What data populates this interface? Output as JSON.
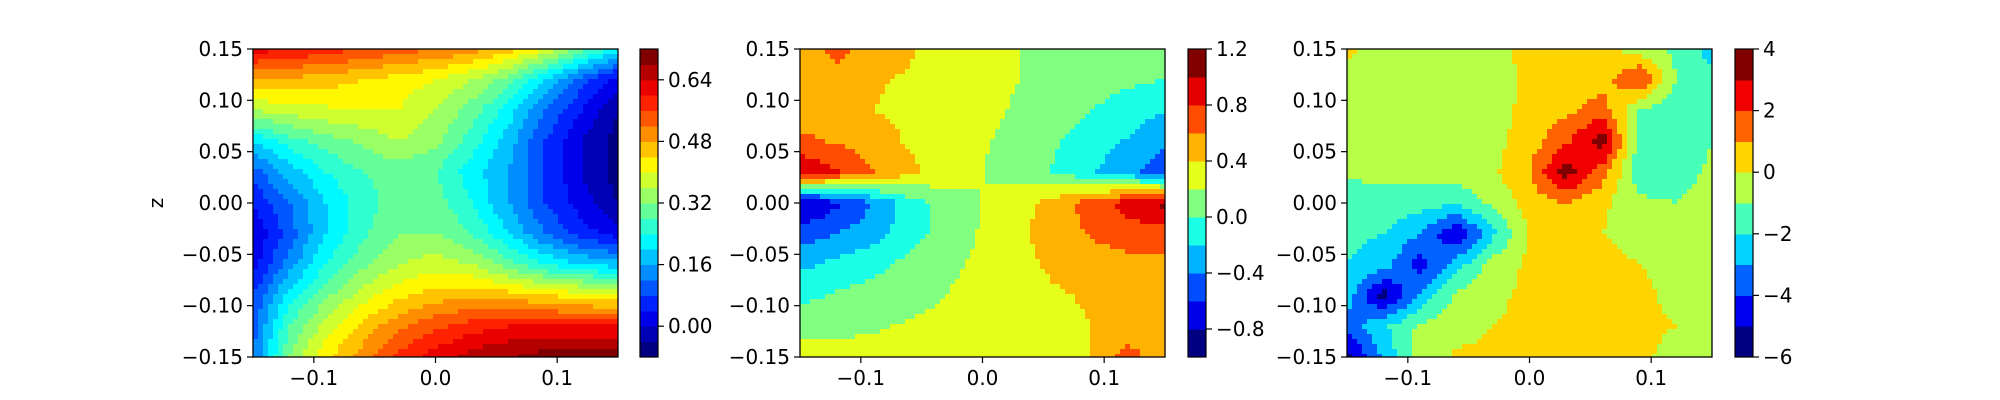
{
  "chart_data": [
    {
      "type": "heatmap",
      "subtype": "filled-contour",
      "colormap": "jet",
      "xlabel": "",
      "ylabel": "z",
      "xlim": [
        -0.15,
        0.15
      ],
      "ylim": [
        -0.15,
        0.15
      ],
      "xticks": [
        "−0.1",
        "0.0",
        "0.1"
      ],
      "yticks": [
        "0.15",
        "0.10",
        "0.05",
        "0.00",
        "−0.05",
        "−0.10",
        "−0.15"
      ],
      "colorbar": {
        "min": -0.08,
        "max": 0.72,
        "levels": [
          -0.08,
          -0.04,
          0.0,
          0.04,
          0.08,
          0.12,
          0.16,
          0.2,
          0.24,
          0.28,
          0.32,
          0.36,
          0.4,
          0.44,
          0.48,
          0.52,
          0.56,
          0.6,
          0.64,
          0.68,
          0.72
        ],
        "tick_values": [
          0.0,
          0.16,
          0.32,
          0.48,
          0.64
        ],
        "tick_labels": [
          "0.00",
          "0.16",
          "0.32",
          "0.48",
          "0.64"
        ]
      },
      "grid": {
        "x": [
          -0.15,
          -0.12,
          -0.09,
          -0.06,
          -0.03,
          0.0,
          0.03,
          0.06,
          0.09,
          0.12,
          0.15
        ],
        "z": [
          0.15,
          0.12,
          0.09,
          0.06,
          0.03,
          0.0,
          -0.03,
          -0.06,
          -0.09,
          -0.12,
          -0.15
        ],
        "values": [
          [
            0.62,
            0.6,
            0.58,
            0.56,
            0.54,
            0.52,
            0.5,
            0.46,
            0.4,
            0.3,
            0.22
          ],
          [
            0.48,
            0.47,
            0.46,
            0.44,
            0.42,
            0.4,
            0.36,
            0.3,
            0.2,
            0.1,
            0.02
          ],
          [
            0.36,
            0.38,
            0.39,
            0.4,
            0.4,
            0.36,
            0.3,
            0.22,
            0.12,
            0.04,
            -0.04
          ],
          [
            0.2,
            0.26,
            0.3,
            0.33,
            0.36,
            0.33,
            0.26,
            0.18,
            0.08,
            0.0,
            -0.06
          ],
          [
            0.1,
            0.18,
            0.24,
            0.28,
            0.3,
            0.28,
            0.22,
            0.16,
            0.08,
            0.0,
            -0.06
          ],
          [
            0.04,
            0.12,
            0.2,
            0.26,
            0.3,
            0.3,
            0.24,
            0.16,
            0.08,
            0.02,
            -0.04
          ],
          [
            0.0,
            0.1,
            0.2,
            0.27,
            0.32,
            0.32,
            0.28,
            0.2,
            0.12,
            0.06,
            0.02
          ],
          [
            0.02,
            0.14,
            0.24,
            0.31,
            0.36,
            0.38,
            0.36,
            0.3,
            0.24,
            0.2,
            0.18
          ],
          [
            0.08,
            0.22,
            0.31,
            0.38,
            0.43,
            0.46,
            0.47,
            0.46,
            0.44,
            0.42,
            0.4
          ],
          [
            0.1,
            0.28,
            0.38,
            0.45,
            0.51,
            0.55,
            0.58,
            0.6,
            0.6,
            0.6,
            0.6
          ],
          [
            0.12,
            0.32,
            0.43,
            0.5,
            0.57,
            0.62,
            0.66,
            0.68,
            0.7,
            0.7,
            0.7
          ]
        ]
      }
    },
    {
      "type": "heatmap",
      "subtype": "filled-contour",
      "colormap": "jet",
      "xlabel": "",
      "ylabel": "",
      "xlim": [
        -0.15,
        0.15
      ],
      "ylim": [
        -0.15,
        0.15
      ],
      "xticks": [
        "−0.1",
        "0.0",
        "0.1"
      ],
      "yticks": [
        "0.15",
        "0.10",
        "0.05",
        "0.00",
        "−0.05",
        "−0.10",
        "−0.15"
      ],
      "colorbar": {
        "min": -1.0,
        "max": 1.2,
        "levels": [
          -1.0,
          -0.8,
          -0.6,
          -0.4,
          -0.2,
          0.0,
          0.2,
          0.4,
          0.6,
          0.8,
          1.0,
          1.2
        ],
        "tick_values": [
          -0.8,
          -0.4,
          0.0,
          0.4,
          0.8,
          1.2
        ],
        "tick_labels": [
          "−0.8",
          "−0.4",
          "0.0",
          "0.4",
          "0.8",
          "1.2"
        ]
      },
      "grid": {
        "x": [
          -0.15,
          -0.12,
          -0.09,
          -0.06,
          -0.03,
          0.0,
          0.03,
          0.06,
          0.09,
          0.12,
          0.15
        ],
        "z": [
          0.15,
          0.12,
          0.09,
          0.06,
          0.03,
          0.0,
          -0.03,
          -0.06,
          -0.09,
          -0.12,
          -0.15
        ],
        "values": [
          [
            0.4,
            0.7,
            0.5,
            0.42,
            0.32,
            0.25,
            0.2,
            0.16,
            0.12,
            0.1,
            0.1
          ],
          [
            0.4,
            0.48,
            0.42,
            0.38,
            0.3,
            0.24,
            0.2,
            0.16,
            0.1,
            0.04,
            0.0
          ],
          [
            0.5,
            0.44,
            0.4,
            0.36,
            0.3,
            0.24,
            0.18,
            0.1,
            0.0,
            -0.1,
            -0.2
          ],
          [
            0.65,
            0.58,
            0.48,
            0.38,
            0.3,
            0.22,
            0.14,
            0.02,
            -0.1,
            -0.22,
            -0.35
          ],
          [
            1.0,
            0.82,
            0.62,
            0.44,
            0.3,
            0.2,
            0.1,
            -0.02,
            -0.18,
            -0.35,
            -0.55
          ],
          [
            -0.85,
            -0.65,
            -0.4,
            -0.1,
            0.1,
            0.2,
            0.32,
            0.5,
            0.7,
            0.9,
            1.05
          ],
          [
            -0.5,
            -0.4,
            -0.28,
            -0.1,
            0.1,
            0.22,
            0.36,
            0.5,
            0.62,
            0.7,
            0.72
          ],
          [
            -0.25,
            -0.15,
            -0.06,
            0.06,
            0.16,
            0.24,
            0.34,
            0.44,
            0.5,
            0.54,
            0.55
          ],
          [
            -0.05,
            0.02,
            0.08,
            0.14,
            0.2,
            0.26,
            0.32,
            0.38,
            0.42,
            0.45,
            0.46
          ],
          [
            0.1,
            0.14,
            0.18,
            0.22,
            0.25,
            0.28,
            0.32,
            0.36,
            0.4,
            0.44,
            0.46
          ],
          [
            0.4,
            0.3,
            0.26,
            0.26,
            0.26,
            0.28,
            0.32,
            0.36,
            0.4,
            0.7,
            0.45
          ]
        ]
      }
    },
    {
      "type": "heatmap",
      "subtype": "filled-contour",
      "colormap": "jet",
      "xlabel": "",
      "ylabel": "",
      "xlim": [
        -0.15,
        0.15
      ],
      "ylim": [
        -0.15,
        0.15
      ],
      "xticks": [
        "−0.1",
        "0.0",
        "0.1"
      ],
      "yticks": [
        "0.15",
        "0.10",
        "0.05",
        "0.00",
        "−0.05",
        "−0.10",
        "−0.15"
      ],
      "colorbar": {
        "min": -6,
        "max": 4,
        "levels": [
          -6,
          -5,
          -4,
          -3,
          -2,
          -1,
          0,
          1,
          2,
          3,
          4
        ],
        "tick_values": [
          -6,
          -4,
          -2,
          0,
          2,
          4
        ],
        "tick_labels": [
          "−6",
          "−4",
          "−2",
          "0",
          "2",
          "4"
        ]
      },
      "grid": {
        "x": [
          -0.15,
          -0.12,
          -0.09,
          -0.06,
          -0.03,
          0.0,
          0.03,
          0.06,
          0.09,
          0.12,
          0.15
        ],
        "z": [
          0.15,
          0.12,
          0.09,
          0.06,
          0.03,
          0.0,
          -0.03,
          -0.06,
          -0.09,
          -0.12,
          -0.15
        ],
        "values": [
          [
            0.2,
            -0.3,
            -0.4,
            -0.4,
            -0.2,
            0.2,
            0.3,
            0.3,
            -0.5,
            -1.2,
            -2.5
          ],
          [
            -0.5,
            -0.5,
            -0.5,
            -0.5,
            -0.4,
            0.2,
            0.3,
            0.5,
            2.2,
            -1.0,
            -1.5
          ],
          [
            -0.6,
            -0.6,
            -0.6,
            -0.5,
            -0.4,
            0.3,
            0.8,
            1.5,
            -1.0,
            -2.0,
            -1.2
          ],
          [
            -0.6,
            -0.6,
            -0.6,
            -0.5,
            -0.3,
            0.5,
            1.8,
            3.6,
            -1.5,
            -2.0,
            -1.0
          ],
          [
            -0.8,
            -0.8,
            -0.7,
            -0.5,
            -0.2,
            1.0,
            3.5,
            1.5,
            -1.6,
            -1.5,
            -0.8
          ],
          [
            -1.5,
            -1.4,
            -1.5,
            -1.8,
            -0.8,
            0.5,
            1.0,
            0.2,
            -0.8,
            -1.0,
            -0.6
          ],
          [
            -1.8,
            -2.0,
            -3.0,
            -5.0,
            -2.2,
            0.1,
            0.2,
            0.0,
            -0.3,
            -0.5,
            -0.4
          ],
          [
            -2.0,
            -2.5,
            -4.5,
            -2.5,
            -0.6,
            0.2,
            0.3,
            0.3,
            0.0,
            -0.2,
            -0.3
          ],
          [
            -2.5,
            -5.5,
            -2.8,
            -0.8,
            -0.2,
            0.2,
            0.3,
            0.3,
            0.2,
            -0.2,
            -0.4
          ],
          [
            -3.5,
            -2.2,
            -0.8,
            -0.3,
            0.0,
            0.2,
            0.3,
            0.3,
            0.2,
            0.0,
            -0.5
          ],
          [
            -5.5,
            -2.8,
            -0.4,
            0.1,
            0.2,
            0.3,
            0.3,
            0.3,
            0.2,
            -0.3,
            -0.5
          ]
        ]
      }
    }
  ]
}
